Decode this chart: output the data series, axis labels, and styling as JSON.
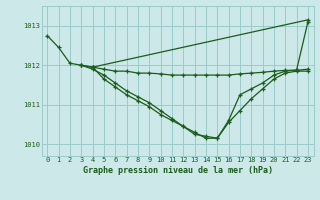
{
  "background_color": "#cce8e8",
  "grid_color": "#99cccc",
  "line_color": "#1a5c1a",
  "title": "Graphe pression niveau de la mer (hPa)",
  "xlim": [
    -0.5,
    23.5
  ],
  "ylim": [
    1009.7,
    1013.5
  ],
  "yticks": [
    1010,
    1011,
    1012,
    1013
  ],
  "xticks": [
    0,
    1,
    2,
    3,
    4,
    5,
    6,
    7,
    8,
    9,
    10,
    11,
    12,
    13,
    14,
    15,
    16,
    17,
    18,
    19,
    20,
    21,
    22,
    23
  ],
  "series": [
    {
      "x": [
        0,
        1,
        2,
        3,
        4,
        23
      ],
      "y": [
        1012.75,
        1012.45,
        1012.05,
        1012.0,
        1011.95,
        1013.15
      ]
    },
    {
      "x": [
        3,
        4,
        5,
        6,
        7,
        8,
        9,
        10,
        11,
        12,
        13,
        14,
        15,
        16,
        17,
        18,
        19,
        20,
        21,
        22,
        23
      ],
      "y": [
        1012.0,
        1011.95,
        1011.9,
        1011.85,
        1011.85,
        1011.8,
        1011.8,
        1011.78,
        1011.75,
        1011.75,
        1011.75,
        1011.75,
        1011.75,
        1011.75,
        1011.78,
        1011.8,
        1011.82,
        1011.85,
        1011.87,
        1011.87,
        1011.9
      ]
    },
    {
      "x": [
        3,
        4,
        5,
        6,
        7,
        8,
        9,
        10,
        11,
        12,
        13,
        14,
        15,
        16,
        17,
        18,
        19,
        20,
        21,
        22,
        23
      ],
      "y": [
        1012.0,
        1011.9,
        1011.75,
        1011.55,
        1011.35,
        1011.2,
        1011.05,
        1010.85,
        1010.65,
        1010.45,
        1010.3,
        1010.15,
        1010.15,
        1010.55,
        1010.85,
        1011.15,
        1011.4,
        1011.65,
        1011.8,
        1011.85,
        1011.85
      ]
    },
    {
      "x": [
        4,
        5,
        6,
        7,
        8,
        9,
        10,
        11,
        12,
        13,
        14,
        15,
        16,
        17,
        18,
        19,
        20,
        21,
        22,
        23
      ],
      "y": [
        1011.95,
        1011.65,
        1011.45,
        1011.25,
        1011.1,
        1010.95,
        1010.75,
        1010.6,
        1010.45,
        1010.25,
        1010.2,
        1010.15,
        1010.6,
        1011.25,
        1011.4,
        1011.55,
        1011.75,
        1011.85,
        1011.88,
        1013.1
      ]
    }
  ]
}
